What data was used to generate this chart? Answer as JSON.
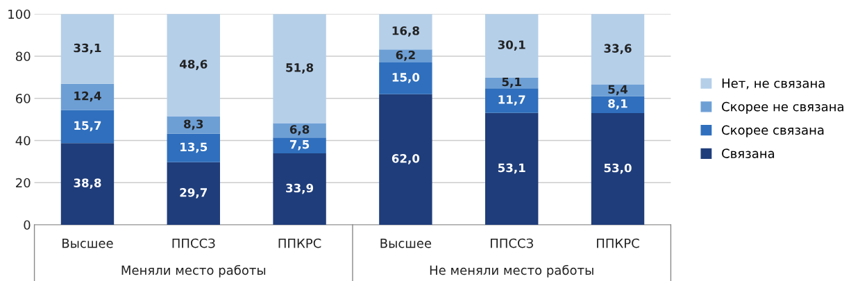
{
  "chart_data": {
    "type": "bar",
    "stacked": true,
    "categories": [
      "Высшее",
      "ППССЗ",
      "ППКРС",
      "Высшее",
      "ППССЗ",
      "ППКРС"
    ],
    "series": [
      {
        "name": "Связана",
        "color": "#1f3d7a",
        "values": [
          38.8,
          29.7,
          33.9,
          62.0,
          53.1,
          53.0
        ],
        "value_labels": [
          "38,8",
          "29,7",
          "33,9",
          "62,0",
          "53,1",
          "53,0"
        ]
      },
      {
        "name": "Скорее связана",
        "color": "#2f6fbd",
        "values": [
          15.7,
          13.5,
          7.5,
          15.0,
          11.7,
          8.1
        ],
        "value_labels": [
          "15,7",
          "13,5",
          "7,5",
          "15,0",
          "11,7",
          "8,1"
        ]
      },
      {
        "name": "Скорее не связана",
        "color": "#6d9fd5",
        "values": [
          12.4,
          8.3,
          6.8,
          6.2,
          5.1,
          5.4
        ],
        "value_labels": [
          "12,4",
          "8,3",
          "6,8",
          "6,2",
          "5,1",
          "5,4"
        ]
      },
      {
        "name": "Нет, не связана",
        "color": "#b5cfe9",
        "values": [
          33.1,
          48.6,
          51.8,
          16.8,
          30.1,
          33.6
        ],
        "value_labels": [
          "33,1",
          "48,6",
          "51,8",
          "16,8",
          "30,1",
          "33,6"
        ]
      }
    ],
    "annotations": [
      "Меняли место работы",
      "Не меняли место работы"
    ],
    "ylim": [
      0,
      100
    ],
    "yticks": [
      0,
      20,
      40,
      60,
      80,
      100
    ],
    "grid": "y",
    "legend": "right"
  }
}
